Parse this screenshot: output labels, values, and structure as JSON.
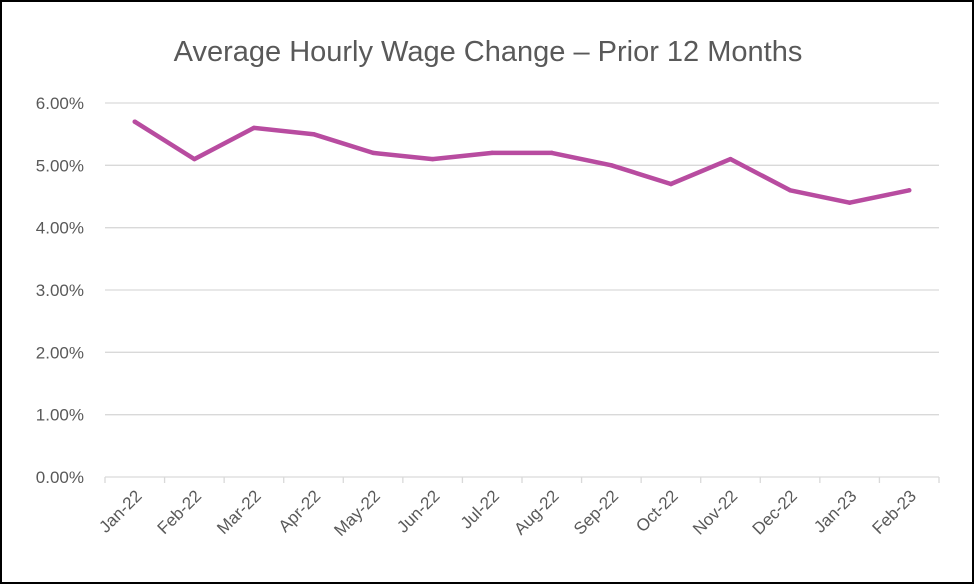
{
  "chart_data": {
    "type": "line",
    "title": "Average Hourly Wage Change – Prior 12 Months",
    "xlabel": "",
    "ylabel": "",
    "categories": [
      "Jan-22",
      "Feb-22",
      "Mar-22",
      "Apr-22",
      "May-22",
      "Jun-22",
      "Jul-22",
      "Aug-22",
      "Sep-22",
      "Oct-22",
      "Nov-22",
      "Dec-22",
      "Jan-23",
      "Feb-23"
    ],
    "series": [
      {
        "values": [
          5.7,
          5.1,
          5.6,
          5.5,
          5.2,
          5.1,
          5.2,
          5.2,
          5.0,
          4.7,
          5.1,
          4.6,
          4.4,
          4.6
        ]
      }
    ],
    "ylim": [
      0,
      6
    ],
    "ytick_labels": [
      "0.00%",
      "1.00%",
      "2.00%",
      "3.00%",
      "4.00%",
      "5.00%",
      "6.00%"
    ],
    "grid": true,
    "legend": "none",
    "line_color": "#B84CA0",
    "grid_color": "#D9D9D9",
    "text_color": "#595959"
  }
}
